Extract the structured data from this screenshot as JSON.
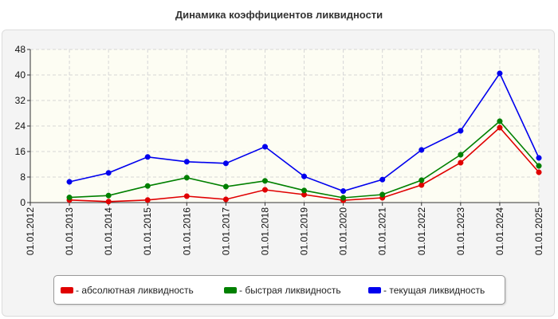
{
  "title": "Динамика коэффициентов ликвидности",
  "chart_data": {
    "type": "line",
    "title": "Динамика коэффициентов ликвидности",
    "xlabel": "",
    "ylabel": "",
    "categories": [
      "01.01.2012",
      "01.01.2013",
      "01.01.2014",
      "01.01.2015",
      "01.01.2016",
      "01.01.2017",
      "01.01.2018",
      "01.01.2019",
      "01.01.2020",
      "01.01.2021",
      "01.01.2022",
      "01.01.2023",
      "01.01.2024",
      "01.01.2025"
    ],
    "y_ticks": [
      "0",
      "8",
      "16",
      "24",
      "32",
      "40",
      "48"
    ],
    "ylim": [
      0,
      48
    ],
    "grid": true,
    "legend_position": "bottom",
    "series": [
      {
        "name": "абсолютная ликвидность",
        "color": "#e00000",
        "values": [
          null,
          0.8,
          0.3,
          0.8,
          2.0,
          1.0,
          4.0,
          2.5,
          0.7,
          1.5,
          5.5,
          12.5,
          23.5,
          9.5
        ]
      },
      {
        "name": "быстрая ликвидность",
        "color": "#008000",
        "values": [
          null,
          1.6,
          2.2,
          5.2,
          7.8,
          5.0,
          6.8,
          3.8,
          1.5,
          2.5,
          7.0,
          15.0,
          25.5,
          11.5
        ]
      },
      {
        "name": "текущая ликвидность",
        "color": "#0000ee",
        "values": [
          null,
          6.5,
          9.3,
          14.3,
          12.8,
          12.3,
          17.5,
          8.2,
          3.6,
          7.2,
          16.5,
          22.5,
          40.5,
          14.0
        ]
      }
    ]
  },
  "legend": {
    "items": [
      {
        "label": "- абсолютная ликвидность",
        "color": "#e00000"
      },
      {
        "label": "- быстрая ликвидность",
        "color": "#008000"
      },
      {
        "label": "- текущая ликвидность",
        "color": "#0000ee"
      }
    ]
  }
}
